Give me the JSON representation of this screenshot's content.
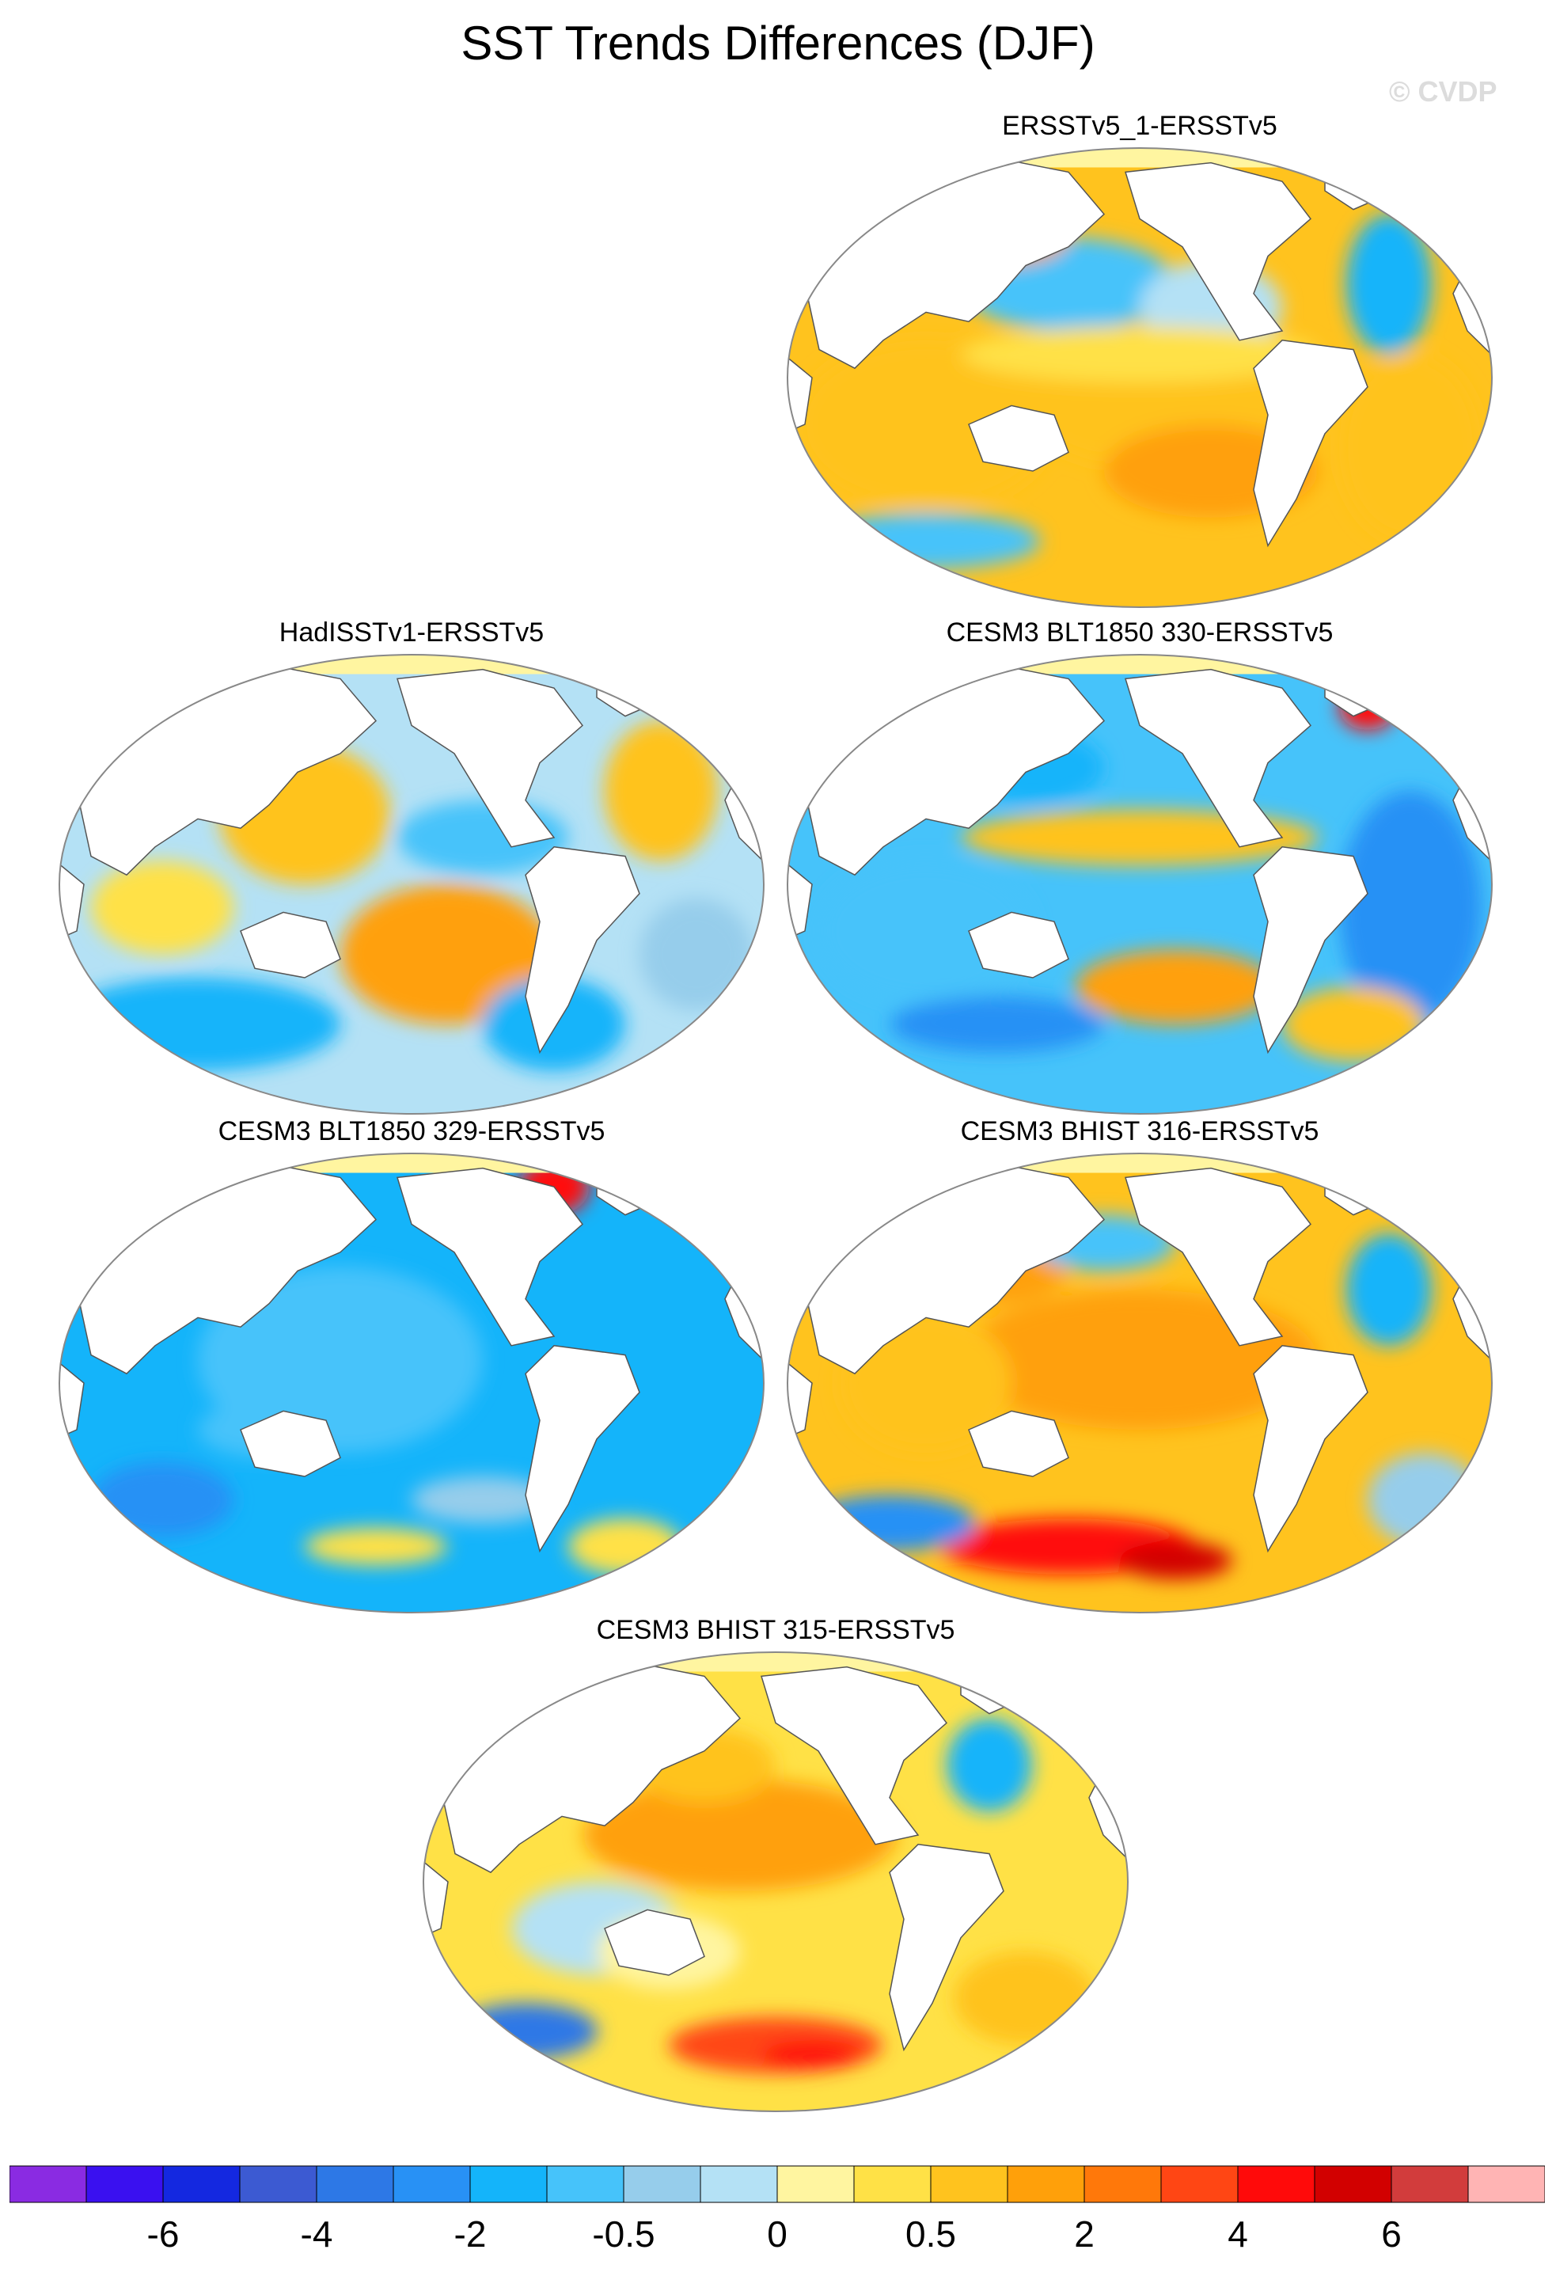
{
  "title": "SST Trends Differences (DJF)",
  "watermark": "© CVDP",
  "panels": [
    {
      "title": "ERSSTv5_1-ERSSTv5",
      "pattern": "warm"
    },
    {
      "title": "HadISSTv1-ERSSTv5",
      "pattern": "mixed"
    },
    {
      "title": "CESM3 BLT1850 330-ERSSTv5",
      "pattern": "cool"
    },
    {
      "title": "CESM3 BLT1850 329-ERSSTv5",
      "pattern": "cold"
    },
    {
      "title": "CESM3 BHIST 316-ERSSTv5",
      "pattern": "hot"
    },
    {
      "title": "CESM3 BHIST 315-ERSSTv5",
      "pattern": "hot2"
    }
  ],
  "colorbar": {
    "colors": [
      "#8a2be2",
      "#3a10f0",
      "#1428e0",
      "#3c5ad2",
      "#2d78e6",
      "#2891f5",
      "#14b4fa",
      "#46c3fa",
      "#96cdeb",
      "#b4e1f5",
      "#fff5a0",
      "#ffe146",
      "#ffc31e",
      "#ffa00a",
      "#ff780a",
      "#ff4614",
      "#ff0a0a",
      "#d20000",
      "#d23c3c",
      "#ffb4b4"
    ],
    "labels": [
      "-6",
      "-4",
      "-2",
      "-0.5",
      "0",
      "0.5",
      "2",
      "4",
      "6"
    ]
  },
  "colors": {
    "land": "#ffffff",
    "coast": "#555555",
    "frame": "#888888"
  }
}
